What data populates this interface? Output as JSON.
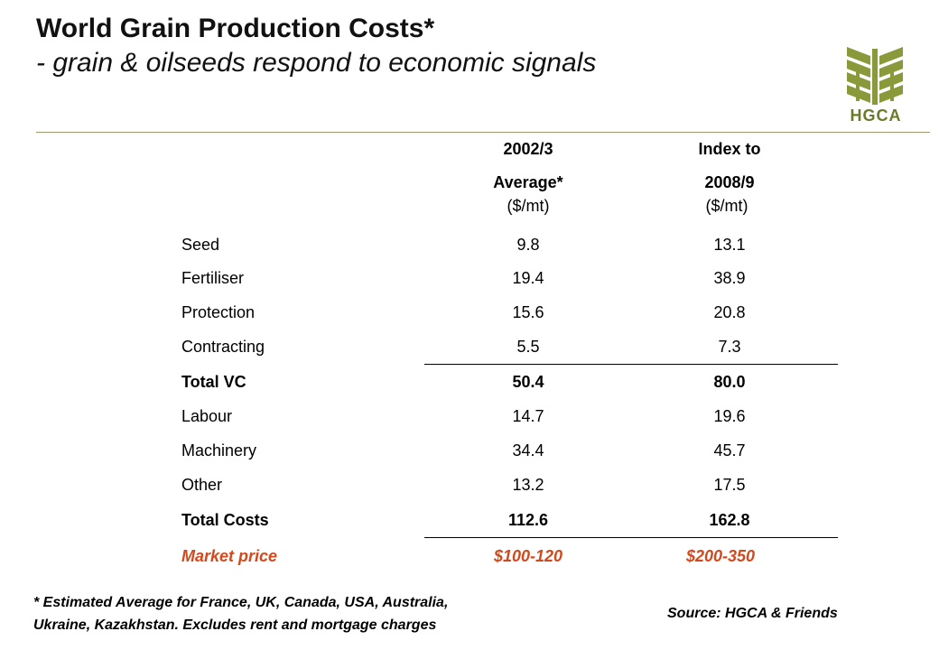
{
  "header": {
    "title": "World Grain Production Costs*",
    "subtitle": "- grain & oilseeds respond to economic signals",
    "logo_text": "HGCA"
  },
  "table": {
    "col1_line1": "2002/3",
    "col1_line2": "Average*",
    "col1_unit": "($/mt)",
    "col2_line1": "Index to",
    "col2_line2": "2008/9",
    "col2_unit": "($/mt)",
    "rows": [
      {
        "label": "Seed",
        "v1": "9.8",
        "v2": "13.1"
      },
      {
        "label": "Fertiliser",
        "v1": "19.4",
        "v2": "38.9"
      },
      {
        "label": "Protection",
        "v1": "15.6",
        "v2": "20.8"
      },
      {
        "label": "Contracting",
        "v1": "5.5",
        "v2": "7.3"
      },
      {
        "label": "Total VC",
        "v1": "50.4",
        "v2": "80.0"
      },
      {
        "label": "Labour",
        "v1": "14.7",
        "v2": "19.6"
      },
      {
        "label": "Machinery",
        "v1": "34.4",
        "v2": "45.7"
      },
      {
        "label": "Other",
        "v1": "13.2",
        "v2": "17.5"
      },
      {
        "label": "Total Costs",
        "v1": "112.6",
        "v2": "162.8"
      },
      {
        "label": "Market price",
        "v1": "$100-120",
        "v2": "$200-350"
      }
    ]
  },
  "footer": {
    "note_line1": "* Estimated Average for France, UK, Canada, USA, Australia,",
    "note_line2": "Ukraine, Kazakhstan. Excludes rent and mortgage charges",
    "source": "Source: HGCA & Friends"
  },
  "colors": {
    "accent": "#d04a1e",
    "logo": "#8a9a3a"
  }
}
